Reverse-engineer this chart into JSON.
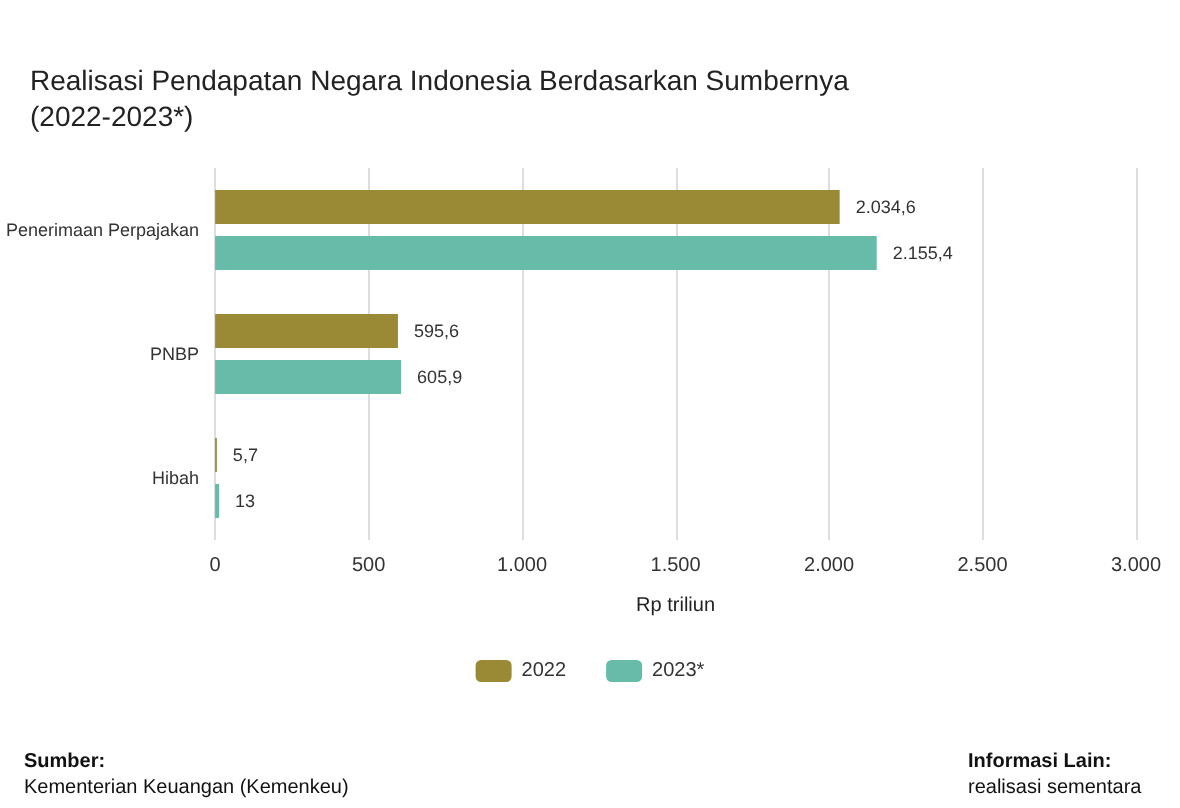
{
  "chart_data": {
    "type": "bar",
    "orientation": "horizontal",
    "title": "Realisasi Pendapatan Negara Indonesia Berdasarkan Sumbernya (2022-2023*)",
    "xlabel": "Rp triliun",
    "categories": [
      "Penerimaan Perpajakan",
      "PNBP",
      "Hibah"
    ],
    "series": [
      {
        "name": "2022",
        "color": "#9a8a35",
        "values": [
          2034.6,
          595.6,
          5.7
        ],
        "value_labels": [
          "2.034,6",
          "595,6",
          "5,7"
        ]
      },
      {
        "name": "2023*",
        "color": "#66bba9",
        "values": [
          2155.4,
          605.9,
          13
        ],
        "value_labels": [
          "2.155,4",
          "605,9",
          "13"
        ]
      }
    ],
    "xlim": [
      0,
      3000
    ],
    "xticks": [
      0,
      500,
      {
        "value": 1000,
        "label": "1.000"
      },
      {
        "value": 1500,
        "label": "1.500"
      },
      {
        "value": 2000,
        "label": "2.000"
      },
      {
        "value": 2500,
        "label": "2.500"
      },
      {
        "value": 3000,
        "label": "3.000"
      }
    ],
    "grid": "x",
    "legend": "bottom",
    "annotations": [
      "Sumber:",
      "Kementerian Keuangan (Kemenkeu)",
      "Informasi Lain:",
      "realisasi sementara"
    ]
  }
}
